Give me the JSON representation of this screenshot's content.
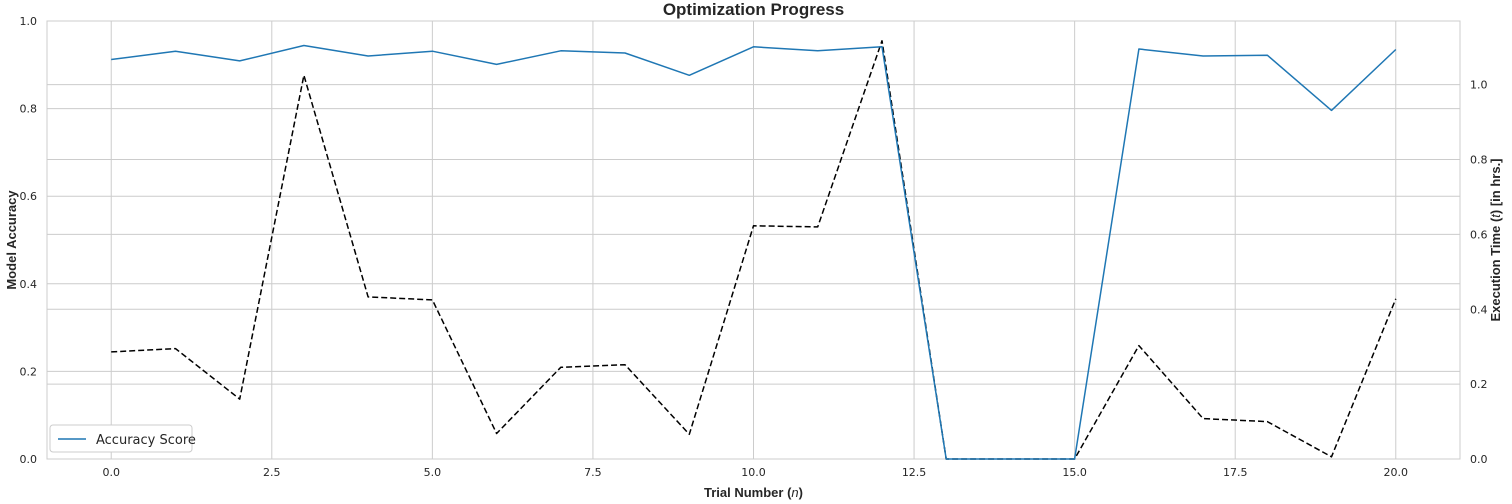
{
  "chart_data": {
    "type": "line",
    "title": "Optimization Progress",
    "xlabel_prefix": "Trial Number (",
    "xlabel_var": "n",
    "xlabel_suffix": ")",
    "ylabel": "Model Accuracy",
    "y2label_prefix": "Execution Time (",
    "y2label_var": "t",
    "y2label_suffix": ") [in hrs.]",
    "xlim": [
      -1,
      21
    ],
    "ylim": [
      0,
      1
    ],
    "y2lim": [
      0,
      1.17
    ],
    "x_ticks": [
      0,
      2.5,
      5,
      7.5,
      10,
      12.5,
      15,
      17.5,
      20
    ],
    "x_tick_labels": [
      "0.0",
      "2.5",
      "5.0",
      "7.5",
      "10.0",
      "12.5",
      "15.0",
      "17.5",
      "20.0"
    ],
    "y_ticks": [
      0,
      0.2,
      0.4,
      0.6,
      0.8,
      1.0
    ],
    "y_tick_labels": [
      "0.0",
      "0.2",
      "0.4",
      "0.6",
      "0.8",
      "1.0"
    ],
    "y2_ticks": [
      0,
      0.2,
      0.4,
      0.6,
      0.8,
      1.0
    ],
    "y2_tick_labels": [
      "0.0",
      "0.2",
      "0.4",
      "0.6",
      "0.8",
      "1.0"
    ],
    "grid": true,
    "legend_position": "bottom-left",
    "x": [
      0,
      1,
      2,
      3,
      4,
      5,
      6,
      7,
      8,
      9,
      10,
      11,
      12,
      13,
      14,
      15,
      16,
      17,
      18,
      19,
      20
    ],
    "series": [
      {
        "name": "Accuracy Score",
        "axis": "left",
        "color": "#1f77b4",
        "style": "solid",
        "values": [
          0.912,
          0.931,
          0.909,
          0.944,
          0.92,
          0.931,
          0.901,
          0.932,
          0.927,
          0.876,
          0.941,
          0.932,
          0.941,
          0.0,
          0.0,
          0.0,
          0.936,
          0.92,
          0.922,
          0.796,
          0.935
        ]
      },
      {
        "axis": "right",
        "color": "#000000",
        "style": "dashed",
        "values": [
          0.286,
          0.295,
          0.16,
          1.025,
          0.433,
          0.425,
          0.068,
          0.245,
          0.252,
          0.066,
          0.623,
          0.62,
          1.117,
          0.0,
          0.0,
          0.0,
          0.303,
          0.108,
          0.1,
          0.006,
          0.428
        ]
      }
    ]
  }
}
